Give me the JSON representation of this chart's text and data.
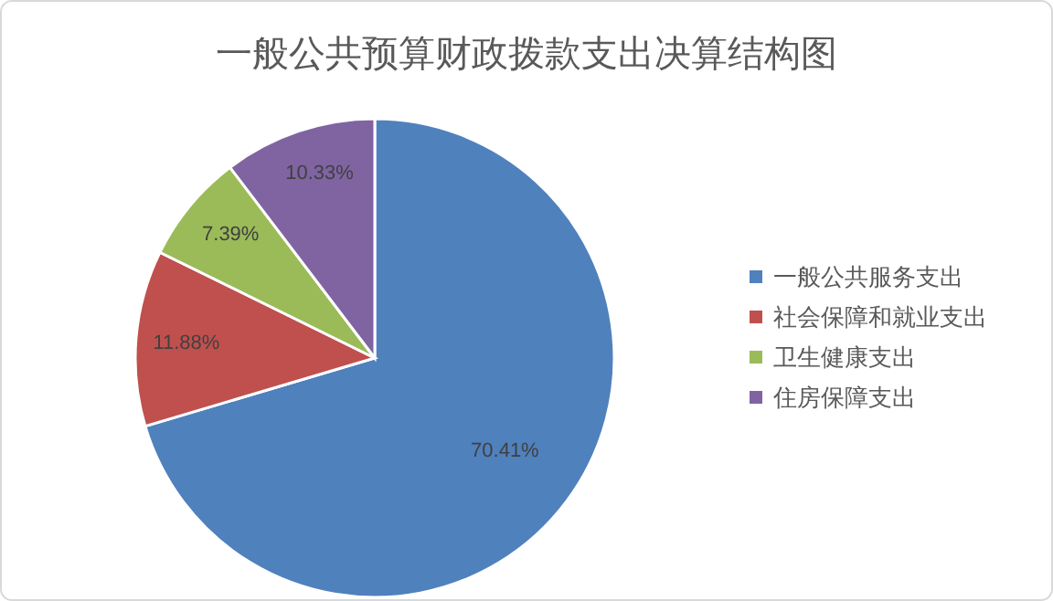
{
  "chart_data": {
    "type": "pie",
    "title": "一般公共预算财政拨款支出决算结构图",
    "categories": [
      "一般公共服务支出",
      "社会保障和就业支出",
      "卫生健康支出",
      "住房保障支出"
    ],
    "values": [
      70.41,
      11.88,
      7.39,
      10.33
    ],
    "colors": [
      "#4f81bd",
      "#c0504d",
      "#9bbb59",
      "#8064a2"
    ],
    "value_labels": [
      "70.41%",
      "11.88%",
      "7.39%",
      "10.33%"
    ],
    "legend": "right"
  }
}
